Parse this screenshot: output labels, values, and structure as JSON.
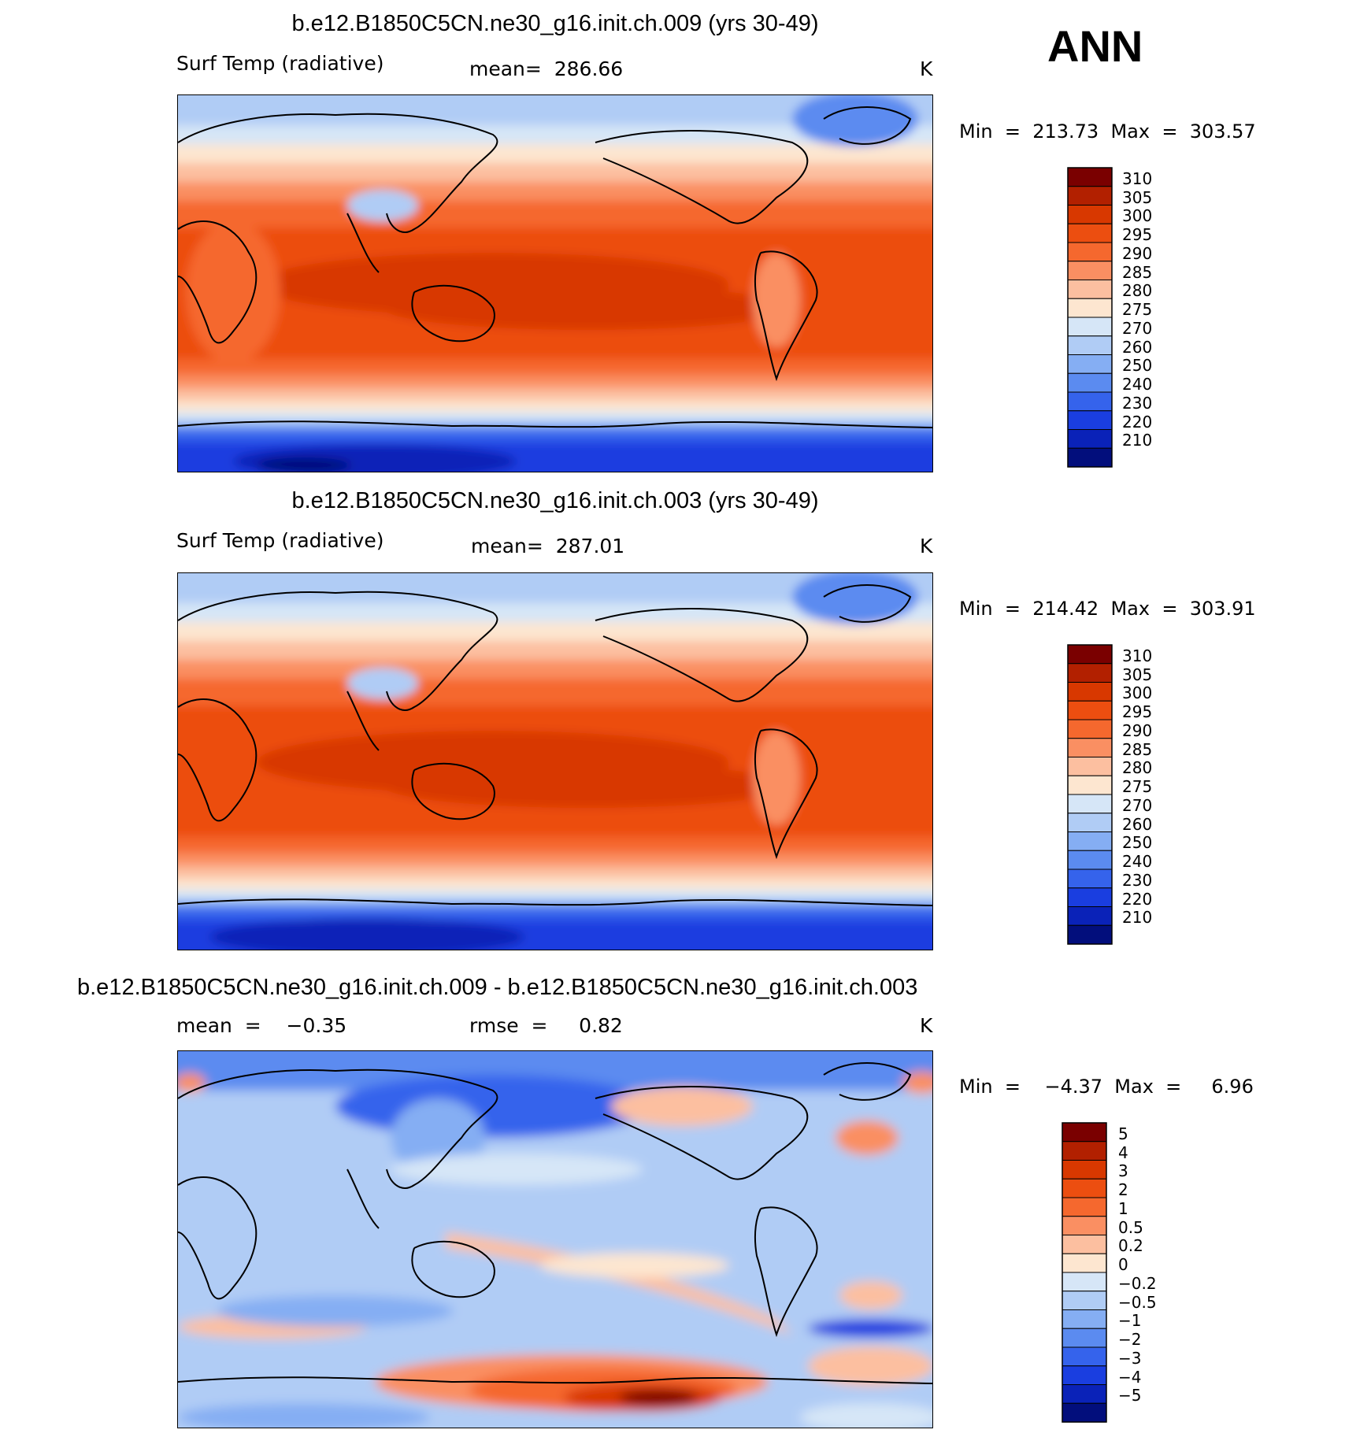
{
  "season": "ANN",
  "panels": [
    {
      "title": "b.e12.B1850C5CN.ne30_g16.init.ch.009 (yrs 30-49)",
      "left_label": "Surf Temp (radiative)",
      "center_label": "mean=  286.66",
      "units": "K",
      "min_max": "Min  =  213.73  Max  =  303.57",
      "colorbar": {
        "labels": [
          "310",
          "305",
          "300",
          "295",
          "290",
          "285",
          "280",
          "275",
          "270",
          "260",
          "250",
          "240",
          "230",
          "220",
          "210"
        ],
        "colors": [
          "#7a0000",
          "#b22000",
          "#d83800",
          "#ec4e10",
          "#f5682e",
          "#fa8f62",
          "#fcbfa0",
          "#fde6d0",
          "#d6e6f7",
          "#b0ccf5",
          "#85aef3",
          "#5b8bf0",
          "#3563ec",
          "#1a3ee0",
          "#0a22b8",
          "#020e7c"
        ]
      }
    },
    {
      "title": "b.e12.B1850C5CN.ne30_g16.init.ch.003 (yrs 30-49)",
      "left_label": "Surf Temp (radiative)",
      "center_label": "mean=  287.01",
      "units": "K",
      "min_max": "Min  =  214.42  Max  =  303.91",
      "colorbar": {
        "labels": [
          "310",
          "305",
          "300",
          "295",
          "290",
          "285",
          "280",
          "275",
          "270",
          "260",
          "250",
          "240",
          "230",
          "220",
          "210"
        ],
        "colors": [
          "#7a0000",
          "#b22000",
          "#d83800",
          "#ec4e10",
          "#f5682e",
          "#fa8f62",
          "#fcbfa0",
          "#fde6d0",
          "#d6e6f7",
          "#b0ccf5",
          "#85aef3",
          "#5b8bf0",
          "#3563ec",
          "#1a3ee0",
          "#0a22b8",
          "#020e7c"
        ]
      }
    },
    {
      "title": "b.e12.B1850C5CN.ne30_g16.init.ch.009 - b.e12.B1850C5CN.ne30_g16.init.ch.003",
      "left_label": "mean  =    −0.35",
      "center_label": "rmse  =     0.82",
      "units": "K",
      "min_max": "Min  =    −4.37  Max  =     6.96",
      "colorbar": {
        "labels": [
          "5",
          "4",
          "3",
          "2",
          "1",
          "0.5",
          "0.2",
          "0",
          "−0.2",
          "−0.5",
          "−1",
          "−2",
          "−3",
          "−4",
          "−5"
        ],
        "colors": [
          "#7a0000",
          "#b22000",
          "#d83800",
          "#ec4e10",
          "#f5682e",
          "#fa8f62",
          "#fcbfa0",
          "#fde6d0",
          "#d6e6f7",
          "#b0ccf5",
          "#85aef3",
          "#5b8bf0",
          "#3563ec",
          "#1a3ee0",
          "#0a22b8",
          "#020e7c"
        ]
      }
    }
  ]
}
